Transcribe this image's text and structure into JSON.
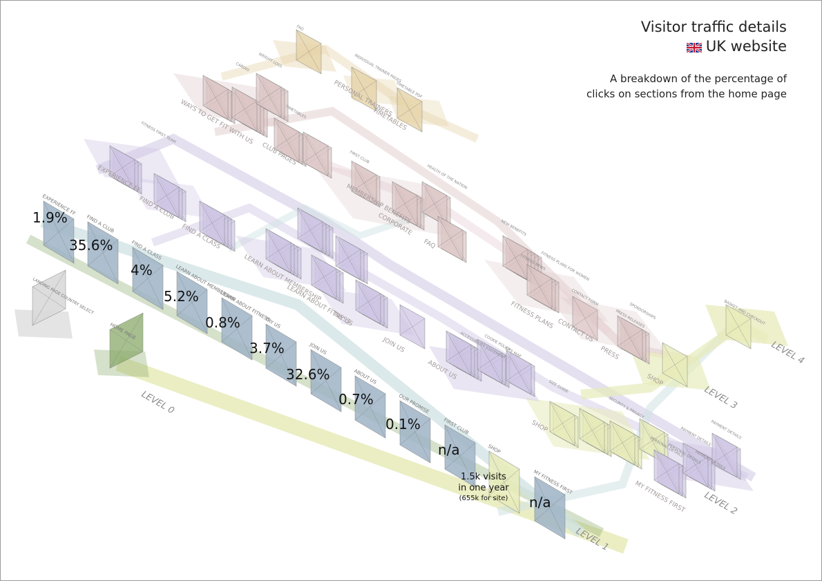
{
  "title": {
    "main": "Visitor traffic details",
    "site": "UK website",
    "flag_icon": "uk-flag-icon",
    "description_line1": "A breakdown of the percentage of",
    "description_line2": "clicks on sections from the home page"
  },
  "levels": [
    {
      "label": "LEVEL 0"
    },
    {
      "label": "LEVEL 1"
    },
    {
      "label": "LEVEL 2"
    },
    {
      "label": "LEVEL 3"
    },
    {
      "label": "LEVEL 4"
    }
  ],
  "level0_pages": [
    {
      "label": "LANDING PAGE COUNTRY SELECT"
    },
    {
      "label": "HOME PAGE"
    }
  ],
  "level1_pages": [
    {
      "label": "EXPERIENCE FF",
      "pct": "1.9%"
    },
    {
      "label": "FIND A CLUB",
      "pct": "35.6%"
    },
    {
      "label": "FIND A CLASS",
      "pct": "4%"
    },
    {
      "label": "LEARN ABOUT MEMBERSHIP",
      "pct": "5.2%"
    },
    {
      "label": "LEARN ABOUT FITNESS",
      "pct": "0.8%"
    },
    {
      "label": "TRY US",
      "pct": "3.7%"
    },
    {
      "label": "JOIN US",
      "pct": "32.6%"
    },
    {
      "label": "ABOUT US",
      "pct": "0.7%"
    },
    {
      "label": "OUR PROMISE",
      "pct": "0.1%"
    },
    {
      "label": "FIRST CLUB",
      "pct": "n/a"
    },
    {
      "label": "SHOP",
      "pct": ""
    },
    {
      "label": "MY FITNESS FIRST",
      "pct": "n/a"
    }
  ],
  "shop_note": {
    "line1": "1.5k visits",
    "line2": "in one year",
    "line3": "(655k for site)"
  },
  "section_labels": [
    {
      "label": "EXPERIENCE FF"
    },
    {
      "label": "FIND A CLUB"
    },
    {
      "label": "FIND A CLASS"
    },
    {
      "label": "LEARN ABOUT MEMBERSHIP"
    },
    {
      "label": "LEARN ABOUT FITNESS"
    },
    {
      "label": "TRY US"
    },
    {
      "label": "JOIN US"
    },
    {
      "label": "ABOUT US"
    },
    {
      "label": "MY FITNESS FIRST"
    },
    {
      "label": "SHOP"
    },
    {
      "label": "WAYS TO GET FIT WITH US"
    },
    {
      "label": "CLUB PAGES"
    },
    {
      "label": "PERSONAL TRAINERS"
    },
    {
      "label": "TIMETABLES"
    },
    {
      "label": "MEMBERSHIP BENEFITS"
    },
    {
      "label": "CORPORATE"
    },
    {
      "label": "FAQ"
    },
    {
      "label": "FITNESS PLANS"
    },
    {
      "label": "CONTACT US"
    },
    {
      "label": "PRESS"
    },
    {
      "label": "SHOP"
    }
  ],
  "detail_pages": [
    {
      "label": "FAQ"
    },
    {
      "label": "WEIGHT LOSS"
    },
    {
      "label": "INDIVIDUAL TRAINER PAGES"
    },
    {
      "label": "TIMETABLE PDF"
    },
    {
      "label": "CARDIO"
    },
    {
      "label": "TIMETABLES"
    },
    {
      "label": "FITNESS FIRST TEAM"
    },
    {
      "label": "FIRST CLUB"
    },
    {
      "label": "HEALTH OF THE NATION"
    },
    {
      "label": "NEW BENEFITS"
    },
    {
      "label": "FITNESS NEWS"
    },
    {
      "label": "FITNESS PLANS FOR WOMEN"
    },
    {
      "label": "CONTACT FORM"
    },
    {
      "label": "PRESS RELEASES"
    },
    {
      "label": "SPONSORSHIPS"
    },
    {
      "label": "BASKET AND CHECKOUT"
    },
    {
      "label": "COOKIE POLICY"
    },
    {
      "label": "ACCESSIBILITY STATEMENT"
    },
    {
      "label": "SITE MAP"
    },
    {
      "label": "SIZE GUIDE"
    },
    {
      "label": "SECURITY & PRIVACY"
    },
    {
      "label": "PERSONAL DETAILS"
    },
    {
      "label": "PAYMENT DETAILS"
    },
    {
      "label": "PAYMENT DETAILS"
    },
    {
      "label": "PERSONAL DETAILS"
    },
    {
      "label": "PAYMENT DETAILS"
    }
  ],
  "colors": {
    "grey": "#d9d9d9",
    "green": "#8aaa6a",
    "blue": "#9fb4c7",
    "teal": "#cfe2e3",
    "lavender": "#cfc6e4",
    "rose": "#ddc6c6",
    "yellow": "#e7ebb9",
    "tan": "#e6d3a8",
    "pink_stripe": "#ecdbe0",
    "level_text": "#8c8c8c"
  }
}
